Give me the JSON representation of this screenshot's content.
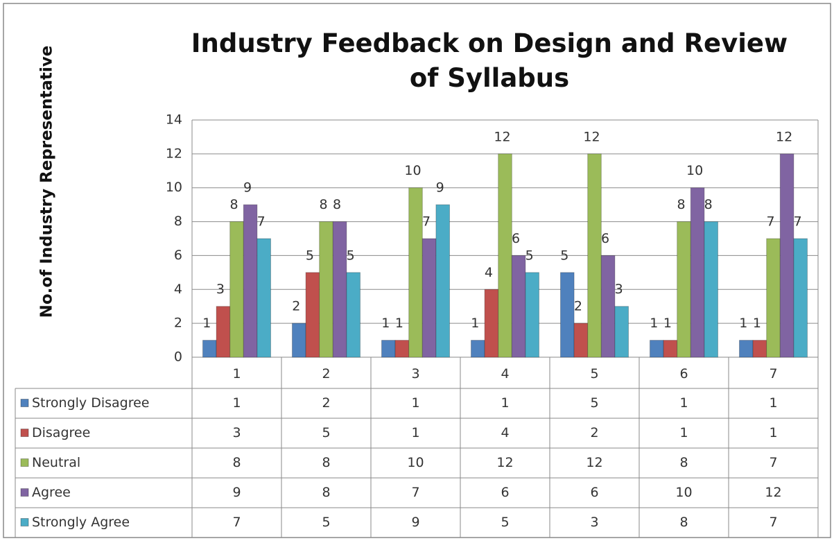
{
  "chart_data": {
    "type": "bar",
    "title": "Industry Feedback on Design and Review of Syllabus",
    "ylabel": "No.of Industry Representative",
    "categories": [
      "1",
      "2",
      "3",
      "4",
      "5",
      "6",
      "7"
    ],
    "series": [
      {
        "name": "Strongly Disagree",
        "color": "#4f81bd",
        "values": [
          1,
          2,
          1,
          1,
          5,
          1,
          1
        ]
      },
      {
        "name": "Disagree",
        "color": "#c0504d",
        "values": [
          3,
          5,
          1,
          4,
          2,
          1,
          1
        ]
      },
      {
        "name": "Neutral",
        "color": "#9bbb59",
        "values": [
          8,
          8,
          10,
          12,
          12,
          8,
          7
        ]
      },
      {
        "name": "Agree",
        "color": "#8064a2",
        "values": [
          9,
          8,
          7,
          6,
          6,
          10,
          12
        ]
      },
      {
        "name": "Strongly Agree",
        "color": "#4bacc6",
        "values": [
          7,
          5,
          9,
          5,
          3,
          8,
          7
        ]
      }
    ],
    "ylim": [
      0,
      14
    ],
    "yticks": [
      0,
      2,
      4,
      6,
      8,
      10,
      12,
      14
    ],
    "grid": true
  }
}
